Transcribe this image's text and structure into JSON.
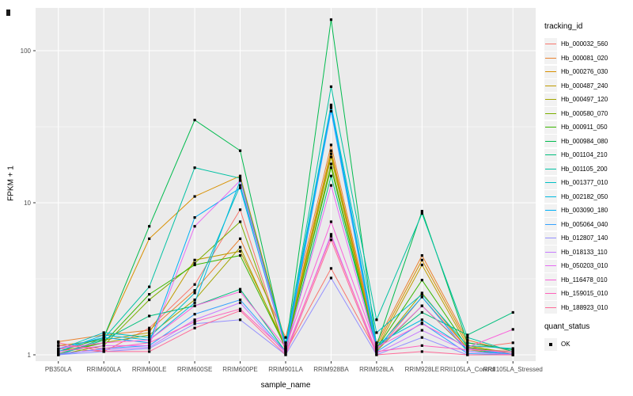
{
  "figure": {
    "background": "#FFFFFF",
    "panel_background": "#EBEBEB",
    "grid_color": "#FFFFFF",
    "tick_label_color": "#4D4D4D"
  },
  "legend": {
    "tracking_title": "tracking_id",
    "quant_title": "quant_status",
    "quant_ok_label": "OK",
    "key_background": "#F2F2F2",
    "quant_point_color": "#000000"
  },
  "chart_data": {
    "type": "line",
    "title": "",
    "xlabel": "sample_name",
    "ylabel": "FPKM + 1",
    "y_scale": "log10",
    "ylim": [
      1,
      190
    ],
    "grid": true,
    "legend_position": "right",
    "point_shape": "square",
    "point_color": "#000000",
    "y_ticks": [
      {
        "label": "1",
        "value": 1
      },
      {
        "label": "10",
        "value": 10
      },
      {
        "label": "100",
        "value": 100
      }
    ],
    "y_minor_breaks": [
      3.1623,
      31.623
    ],
    "categories": [
      "PB350LA",
      "RRIM600LA",
      "RRIM600LE",
      "RRIM600SE",
      "RRIM600PE",
      "RRIM901LA",
      "RRIM928BA",
      "RRIM928LA",
      "RRIM928LE",
      "RRII105LA_Control",
      "RRII105LA_Stressed"
    ],
    "series": [
      {
        "name": "Hb_000032_560",
        "color": "#F8766D",
        "values": [
          1.1,
          1.05,
          1.5,
          2.9,
          9.0,
          1.05,
          3.7,
          1.05,
          2.4,
          1.1,
          1.2
        ]
      },
      {
        "name": "Hb_000081_020",
        "color": "#EA8331",
        "values": [
          1.22,
          1.35,
          1.45,
          2.65,
          5.8,
          1.3,
          24,
          1.2,
          4.5,
          1.25,
          1.05
        ]
      },
      {
        "name": "Hb_000276_030",
        "color": "#D89000",
        "values": [
          1.05,
          1.3,
          5.8,
          11.0,
          15.0,
          1.2,
          22,
          1.15,
          4.2,
          1.2,
          1.08
        ]
      },
      {
        "name": "Hb_000487_240",
        "color": "#C09B00",
        "values": [
          1.15,
          1.25,
          1.4,
          4.2,
          4.8,
          1.15,
          21,
          1.1,
          3.9,
          1.15,
          1.02
        ]
      },
      {
        "name": "Hb_000497_120",
        "color": "#A3A500",
        "values": [
          1.05,
          1.2,
          1.35,
          2.3,
          5.1,
          1.1,
          20,
          1.08,
          2.55,
          1.1,
          1.05
        ]
      },
      {
        "name": "Hb_000580_070",
        "color": "#7CAE00",
        "values": [
          1.0,
          1.15,
          2.3,
          4.0,
          7.5,
          1.08,
          18,
          1.06,
          2.1,
          1.08,
          1.0
        ]
      },
      {
        "name": "Hb_000911_050",
        "color": "#39B600",
        "values": [
          1.02,
          1.2,
          2.5,
          3.9,
          4.5,
          1.12,
          17,
          1.1,
          3.1,
          1.12,
          1.02
        ]
      },
      {
        "name": "Hb_000984_080",
        "color": "#00BB4E",
        "values": [
          1.05,
          1.3,
          7.0,
          35.0,
          22.0,
          1.1,
          160,
          1.15,
          8.8,
          1.2,
          1.08
        ]
      },
      {
        "name": "Hb_001104_210",
        "color": "#00BF7D",
        "values": [
          1.0,
          1.25,
          1.8,
          2.1,
          2.7,
          1.05,
          15,
          1.12,
          1.9,
          1.35,
          1.9
        ]
      },
      {
        "name": "Hb_001105_200",
        "color": "#00C1A3",
        "values": [
          1.0,
          1.28,
          2.8,
          17.0,
          14.5,
          1.15,
          58,
          1.7,
          8.5,
          1.3,
          1.05
        ]
      },
      {
        "name": "Hb_001377_010",
        "color": "#00BFC4",
        "values": [
          1.08,
          1.4,
          1.3,
          2.55,
          13.0,
          1.2,
          44,
          1.4,
          2.5,
          1.15,
          1.1
        ]
      },
      {
        "name": "Hb_002182_050",
        "color": "#00BAE0",
        "values": [
          1.05,
          1.35,
          1.25,
          2.2,
          14.0,
          1.1,
          43,
          1.18,
          1.7,
          1.1,
          1.0
        ]
      },
      {
        "name": "Hb_003090_180",
        "color": "#00B0F6",
        "values": [
          1.1,
          1.3,
          1.2,
          8.0,
          12.5,
          1.1,
          42,
          1.1,
          2.4,
          1.05,
          1.02
        ]
      },
      {
        "name": "Hb_005064_040",
        "color": "#35A2FF",
        "values": [
          1.0,
          1.1,
          1.15,
          1.85,
          2.3,
          1.05,
          40,
          1.05,
          1.62,
          1.02,
          1.0
        ]
      },
      {
        "name": "Hb_012807_140",
        "color": "#9590FF",
        "values": [
          1.0,
          1.05,
          1.1,
          1.6,
          1.7,
          1.0,
          3.2,
          1.0,
          1.3,
          1.0,
          1.0
        ]
      },
      {
        "name": "Hb_018133_110",
        "color": "#C77CFF",
        "values": [
          1.02,
          1.08,
          1.12,
          1.7,
          2.2,
          1.02,
          6.2,
          1.02,
          1.45,
          1.05,
          1.0
        ]
      },
      {
        "name": "Hb_050203_010",
        "color": "#E76BF3",
        "values": [
          1.05,
          1.15,
          1.15,
          7.0,
          14.0,
          1.08,
          13,
          1.08,
          2.1,
          1.1,
          1.02
        ]
      },
      {
        "name": "Hb_116478_010",
        "color": "#FA62DB",
        "values": [
          1.1,
          1.2,
          1.25,
          2.1,
          2.6,
          1.12,
          7.5,
          1.12,
          1.6,
          1.12,
          1.47
        ]
      },
      {
        "name": "Hb_159015_010",
        "color": "#FF62BC",
        "values": [
          1.15,
          1.1,
          1.2,
          1.65,
          2.0,
          1.05,
          6.0,
          1.05,
          1.15,
          1.08,
          1.05
        ]
      },
      {
        "name": "Hb_188923_010",
        "color": "#FF6A98",
        "values": [
          1.2,
          1.05,
          1.05,
          1.5,
          1.95,
          1.0,
          5.7,
          1.0,
          1.05,
          1.0,
          1.0
        ]
      }
    ]
  }
}
